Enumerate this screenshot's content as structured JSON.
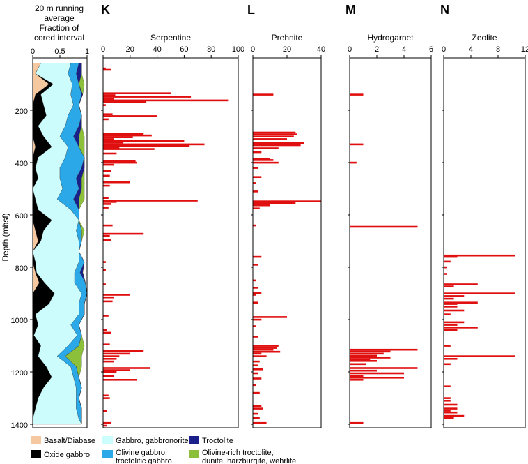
{
  "colors": {
    "basalt": "#f5c8a0",
    "gabbro": "#ccfcfc",
    "oxide": "#000000",
    "olivine_gabbro": "#2aa8e8",
    "troctolite": "#1a1f8a",
    "olivine_rich": "#8cbf3a",
    "bar": "#e01010"
  },
  "strip": {
    "title_lines": [
      "20 m running",
      "average",
      "Fraction of",
      "cored interval"
    ],
    "ticks": [
      "0",
      "0.5",
      "1"
    ],
    "ylabel": "Depth (mbsf)",
    "yticks": [
      "200",
      "400",
      "600",
      "800",
      "1000",
      "1200",
      "1400"
    ]
  },
  "legend": {
    "basalt": "Basalt/Diabase",
    "oxide": "Oxide gabbro",
    "gabbro": "Gabbro, gabbronorite",
    "olivine_gabbro_1": "Olivine gabbro,",
    "olivine_gabbro_2": "troctolitic gabbro",
    "troctolite": "Troctolite",
    "olivine_rich_1": "Olivine-rich troctolite,",
    "olivine_rich_2": "dunite, harzburgite, wehrlite"
  },
  "chart_data": [
    {
      "type": "area",
      "panel": "",
      "title": "20 m running average Fraction of cored interval",
      "ylabel": "Depth (mbsf)",
      "xlim": [
        0,
        1
      ],
      "ylim": [
        0,
        1400
      ],
      "note": "stacked fraction of cored interval by lithology",
      "depth": [
        20,
        60,
        100,
        140,
        180,
        220,
        260,
        300,
        340,
        380,
        420,
        460,
        500,
        540,
        580,
        620,
        660,
        700,
        740,
        780,
        820,
        860,
        900,
        940,
        980,
        1020,
        1060,
        1100,
        1140,
        1180,
        1220,
        1260,
        1300,
        1340,
        1380,
        1400
      ],
      "series": [
        {
          "name": "Basalt/Diabase",
          "values": [
            0.15,
            0.05,
            0.3,
            0.05,
            0,
            0,
            0,
            0,
            0.05,
            0,
            0,
            0,
            0,
            0,
            0,
            0,
            0.05,
            0.1,
            0,
            0,
            0.05,
            0.12,
            0,
            0,
            0,
            0,
            0,
            0,
            0,
            0,
            0,
            0,
            0,
            0,
            0,
            0
          ]
        },
        {
          "name": "Oxide gabbro",
          "values": [
            0,
            0,
            0.08,
            0.1,
            0.2,
            0.25,
            0.1,
            0.2,
            0.3,
            0.1,
            0.05,
            0.1,
            0,
            0.05,
            0.1,
            0.35,
            0.15,
            0.05,
            0,
            0.05,
            0.02,
            0.1,
            0.4,
            0.3,
            0.05,
            0.1,
            0.02,
            0.15,
            0.1,
            0.25,
            0.35,
            0.2,
            0.1,
            0.05,
            0,
            0
          ]
        },
        {
          "name": "Gabbro, gabbronorite",
          "values": [
            0.55,
            0.6,
            0.35,
            0.55,
            0.55,
            0.4,
            0.5,
            0.3,
            0.3,
            0.5,
            0.45,
            0.4,
            0.55,
            0.4,
            0.6,
            0.5,
            0.6,
            0.7,
            0.85,
            0.8,
            0.7,
            0.55,
            0.5,
            0.55,
            0.8,
            0.6,
            0.8,
            0.5,
            0.35,
            0.45,
            0.4,
            0.6,
            0.7,
            0.75,
            0.85,
            0.9
          ]
        },
        {
          "name": "Olivine gabbro, troctolitic gabbro",
          "values": [
            0.15,
            0.15,
            0.12,
            0.2,
            0.1,
            0.25,
            0.25,
            0.25,
            0.2,
            0.35,
            0.4,
            0.3,
            0.3,
            0.3,
            0.15,
            0,
            0.1,
            0.05,
            0,
            0.1,
            0.1,
            0.2,
            0.1,
            0.1,
            0.1,
            0.15,
            0.08,
            0.2,
            0.15,
            0.1,
            0.1,
            0.1,
            0.05,
            0.1,
            0.05,
            0
          ]
        },
        {
          "name": "Troctolite",
          "values": [
            0.05,
            0.1,
            0,
            0.02,
            0,
            0,
            0.05,
            0.1,
            0,
            0,
            0.05,
            0.1,
            0.05,
            0.1,
            0,
            0,
            0,
            0,
            0,
            0,
            0.05,
            0,
            0,
            0,
            0,
            0,
            0,
            0,
            0,
            0,
            0,
            0,
            0,
            0,
            0,
            0
          ]
        },
        {
          "name": "Olivine-rich troctolite, dunite, harzburgite, wehrlite",
          "values": [
            0,
            0,
            0.1,
            0,
            0,
            0,
            0,
            0.1,
            0.1,
            0,
            0,
            0.05,
            0.05,
            0.1,
            0,
            0,
            0.05,
            0,
            0,
            0,
            0,
            0,
            0,
            0,
            0,
            0,
            0,
            0.1,
            0.3,
            0.1,
            0,
            0,
            0,
            0,
            0,
            0
          ]
        }
      ]
    },
    {
      "type": "bar",
      "panel": "K",
      "title": "Serpentine",
      "xlim": [
        0,
        100
      ],
      "xticks": [
        "0",
        "20",
        "40",
        "60",
        "80",
        "100"
      ],
      "orientation": "horizontal",
      "bars": [
        [
          40,
          2
        ],
        [
          45,
          6
        ],
        [
          135,
          50
        ],
        [
          142,
          9
        ],
        [
          148,
          65
        ],
        [
          156,
          8
        ],
        [
          162,
          93
        ],
        [
          168,
          32
        ],
        [
          180,
          2
        ],
        [
          215,
          7
        ],
        [
          222,
          40
        ],
        [
          234,
          4
        ],
        [
          290,
          30
        ],
        [
          296,
          36
        ],
        [
          303,
          22
        ],
        [
          310,
          8
        ],
        [
          317,
          60
        ],
        [
          323,
          15
        ],
        [
          330,
          75
        ],
        [
          336,
          64
        ],
        [
          342,
          12
        ],
        [
          348,
          38
        ],
        [
          365,
          10
        ],
        [
          395,
          24
        ],
        [
          400,
          25
        ],
        [
          408,
          8
        ],
        [
          432,
          6
        ],
        [
          450,
          5
        ],
        [
          475,
          20
        ],
        [
          488,
          5
        ],
        [
          535,
          4
        ],
        [
          545,
          70
        ],
        [
          550,
          10
        ],
        [
          558,
          6
        ],
        [
          572,
          4
        ],
        [
          640,
          7
        ],
        [
          672,
          30
        ],
        [
          680,
          5
        ],
        [
          695,
          6
        ],
        [
          780,
          2
        ],
        [
          810,
          2
        ],
        [
          865,
          2
        ],
        [
          905,
          20
        ],
        [
          915,
          8
        ],
        [
          930,
          7
        ],
        [
          985,
          4
        ],
        [
          1040,
          3
        ],
        [
          1050,
          6
        ],
        [
          1095,
          5
        ],
        [
          1120,
          30
        ],
        [
          1130,
          20
        ],
        [
          1140,
          12
        ],
        [
          1150,
          10
        ],
        [
          1160,
          8
        ],
        [
          1185,
          35
        ],
        [
          1193,
          20
        ],
        [
          1200,
          10
        ],
        [
          1215,
          8
        ],
        [
          1230,
          25
        ],
        [
          1290,
          4
        ],
        [
          1300,
          5
        ],
        [
          1350,
          3
        ],
        [
          1395,
          6
        ],
        [
          1405,
          3
        ]
      ]
    },
    {
      "type": "bar",
      "panel": "L",
      "title": "Prehnite",
      "xlim": [
        0,
        40
      ],
      "xticks": [
        "0",
        "20",
        "40"
      ],
      "orientation": "horizontal",
      "bars": [
        [
          140,
          12
        ],
        [
          285,
          25
        ],
        [
          292,
          26
        ],
        [
          300,
          24
        ],
        [
          310,
          20
        ],
        [
          325,
          30
        ],
        [
          333,
          28
        ],
        [
          345,
          15
        ],
        [
          360,
          5
        ],
        [
          385,
          10
        ],
        [
          390,
          12
        ],
        [
          400,
          15
        ],
        [
          420,
          3
        ],
        [
          455,
          5
        ],
        [
          478,
          2
        ],
        [
          510,
          3
        ],
        [
          548,
          40
        ],
        [
          555,
          25
        ],
        [
          563,
          10
        ],
        [
          575,
          4
        ],
        [
          640,
          2
        ],
        [
          760,
          5
        ],
        [
          790,
          3
        ],
        [
          850,
          2
        ],
        [
          878,
          3
        ],
        [
          898,
          5
        ],
        [
          905,
          2
        ],
        [
          935,
          3
        ],
        [
          990,
          20
        ],
        [
          1000,
          5
        ],
        [
          1025,
          2
        ],
        [
          1065,
          3
        ],
        [
          1100,
          15
        ],
        [
          1108,
          14
        ],
        [
          1115,
          12
        ],
        [
          1123,
          16
        ],
        [
          1130,
          5
        ],
        [
          1140,
          8
        ],
        [
          1160,
          4
        ],
        [
          1175,
          3
        ],
        [
          1190,
          6
        ],
        [
          1205,
          3
        ],
        [
          1225,
          5
        ],
        [
          1250,
          2
        ],
        [
          1280,
          4
        ],
        [
          1330,
          5
        ],
        [
          1340,
          6
        ],
        [
          1360,
          3
        ],
        [
          1375,
          4
        ],
        [
          1395,
          8
        ]
      ]
    },
    {
      "type": "bar",
      "panel": "M",
      "title": "Hydrogarnet",
      "xlim": [
        0,
        6
      ],
      "xticks": [
        "0",
        "2",
        "4",
        "6"
      ],
      "orientation": "horizontal",
      "bars": [
        [
          140,
          1
        ],
        [
          330,
          1
        ],
        [
          400,
          0.5
        ],
        [
          645,
          5
        ],
        [
          1115,
          5
        ],
        [
          1122,
          3
        ],
        [
          1130,
          2.5
        ],
        [
          1138,
          2
        ],
        [
          1145,
          3
        ],
        [
          1152,
          1.5
        ],
        [
          1158,
          2
        ],
        [
          1170,
          1.2
        ],
        [
          1185,
          5
        ],
        [
          1195,
          2
        ],
        [
          1205,
          4
        ],
        [
          1215,
          1
        ],
        [
          1222,
          4
        ],
        [
          1230,
          1
        ],
        [
          1395,
          1
        ]
      ]
    },
    {
      "type": "bar",
      "panel": "N",
      "title": "Zeolite",
      "xlim": [
        0,
        12
      ],
      "xticks": [
        "0",
        "4",
        "8",
        "12"
      ],
      "orientation": "horizontal",
      "bars": [
        [
          755,
          10.5
        ],
        [
          760,
          2
        ],
        [
          778,
          1
        ],
        [
          800,
          0.5
        ],
        [
          825,
          0.5
        ],
        [
          865,
          5
        ],
        [
          873,
          1.5
        ],
        [
          900,
          10.5
        ],
        [
          910,
          3
        ],
        [
          920,
          1.5
        ],
        [
          935,
          5
        ],
        [
          940,
          2
        ],
        [
          950,
          2
        ],
        [
          965,
          3
        ],
        [
          980,
          1
        ],
        [
          1010,
          3
        ],
        [
          1020,
          2
        ],
        [
          1030,
          5
        ],
        [
          1040,
          2
        ],
        [
          1100,
          1
        ],
        [
          1140,
          10.5
        ],
        [
          1150,
          2
        ],
        [
          1170,
          1
        ],
        [
          1255,
          1
        ],
        [
          1300,
          1
        ],
        [
          1310,
          1
        ],
        [
          1325,
          2
        ],
        [
          1340,
          2
        ],
        [
          1348,
          1
        ],
        [
          1355,
          2
        ],
        [
          1368,
          3
        ],
        [
          1375,
          1.5
        ]
      ]
    }
  ]
}
